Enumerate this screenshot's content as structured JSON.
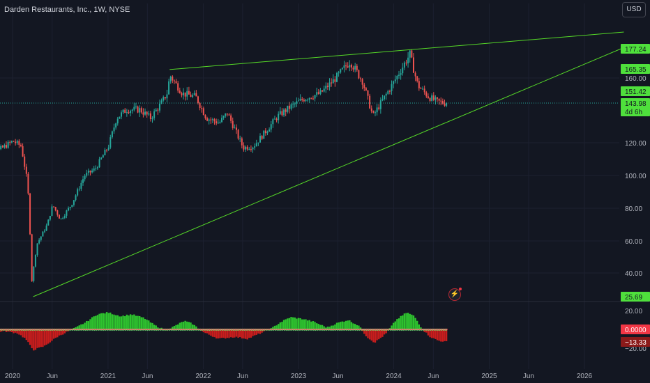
{
  "header": {
    "title": "Darden Restaurants, Inc., 1W, NYSE",
    "currency_button": "USD"
  },
  "colors": {
    "background": "#131722",
    "up": "#26a69a",
    "down": "#ef5350",
    "trendline": "#55d927",
    "osc_pos": "#2ec42e",
    "osc_neg": "#c81d1d"
  },
  "chart_data": {
    "type": "candlestick",
    "x_tick_labels": [
      "2020",
      "Jun",
      "2021",
      "Jun",
      "2022",
      "Jun",
      "2023",
      "Jun",
      "2024",
      "Jun",
      "2025",
      "Jun",
      "2026"
    ],
    "y_tick_labels": [
      "40.00",
      "60.00",
      "80.00",
      "100.00",
      "120.00",
      "160.00"
    ],
    "price_labels": [
      {
        "text": "177.24",
        "value": 177.24,
        "kind": "line"
      },
      {
        "text": "165.35",
        "value": 165.35,
        "kind": "line"
      },
      {
        "text": "151.42",
        "value": 151.42,
        "kind": "line"
      },
      {
        "text": "143.98",
        "value": 143.98,
        "kind": "last"
      },
      {
        "text": "25.69",
        "value": 25.69,
        "kind": "line"
      }
    ],
    "last_price_countdown": "4d 6h",
    "price_path": [
      [
        "2019-09-01",
        118
      ],
      [
        "2019-10-15",
        112
      ],
      [
        "2019-12-01",
        117
      ],
      [
        "2020-01-10",
        121
      ],
      [
        "2020-02-10",
        118
      ],
      [
        "2020-03-06",
        95
      ],
      [
        "2020-03-15",
        65
      ],
      [
        "2020-03-20",
        33
      ],
      [
        "2020-04-10",
        58
      ],
      [
        "2020-05-20",
        70
      ],
      [
        "2020-06-10",
        82
      ],
      [
        "2020-07-10",
        73
      ],
      [
        "2020-08-20",
        82
      ],
      [
        "2020-10-10",
        100
      ],
      [
        "2020-11-20",
        104
      ],
      [
        "2021-01-10",
        118
      ],
      [
        "2021-02-10",
        135
      ],
      [
        "2021-03-20",
        140
      ],
      [
        "2021-05-10",
        140
      ],
      [
        "2021-06-20",
        135
      ],
      [
        "2021-08-01",
        144
      ],
      [
        "2021-08-25",
        151
      ],
      [
        "2021-09-01",
        162
      ],
      [
        "2021-10-20",
        150
      ],
      [
        "2021-12-10",
        148
      ],
      [
        "2022-01-20",
        135
      ],
      [
        "2022-03-10",
        132
      ],
      [
        "2022-04-10",
        138
      ],
      [
        "2022-06-10",
        117
      ],
      [
        "2022-07-20",
        118
      ],
      [
        "2022-09-10",
        128
      ],
      [
        "2022-10-20",
        136
      ],
      [
        "2022-12-10",
        142
      ],
      [
        "2023-02-01",
        147
      ],
      [
        "2023-04-01",
        150
      ],
      [
        "2023-06-01",
        160
      ],
      [
        "2023-07-25",
        170
      ],
      [
        "2023-09-10",
        158
      ],
      [
        "2023-10-20",
        136
      ],
      [
        "2023-12-20",
        152
      ],
      [
        "2024-02-01",
        164
      ],
      [
        "2024-03-10",
        174
      ],
      [
        "2024-04-10",
        155
      ],
      [
        "2024-05-20",
        148
      ],
      [
        "2024-06-20",
        145
      ],
      [
        "2024-07-25",
        144
      ]
    ],
    "lines": [
      {
        "name": "",
        "from": [
          "2021-08-25",
          165
        ],
        "to": [
          "2026-06-01",
          188
        ]
      },
      {
        "name": "",
        "from": [
          "2020-03-20",
          25.69
        ],
        "to": [
          "2026-06-01",
          178
        ]
      }
    ],
    "last_price": 143.98,
    "oscillator": {
      "y_tick_labels": [
        "20.00",
        "-20.00"
      ],
      "labels": [
        {
          "text": "0.0000",
          "kind": "zero"
        },
        {
          "text": "−13.33",
          "kind": "last"
        }
      ],
      "path": [
        [
          "2019-09-01",
          -3
        ],
        [
          "2019-12-01",
          -2
        ],
        [
          "2020-01-20",
          -4
        ],
        [
          "2020-02-20",
          -10
        ],
        [
          "2020-03-20",
          -22
        ],
        [
          "2020-05-01",
          -18
        ],
        [
          "2020-06-20",
          -8
        ],
        [
          "2020-08-01",
          -2
        ],
        [
          "2020-09-01",
          2
        ],
        [
          "2020-10-10",
          8
        ],
        [
          "2020-11-20",
          16
        ],
        [
          "2021-01-01",
          18
        ],
        [
          "2021-02-20",
          14
        ],
        [
          "2021-04-01",
          16
        ],
        [
          "2021-05-20",
          12
        ],
        [
          "2021-07-01",
          4
        ],
        [
          "2021-08-10",
          -1
        ],
        [
          "2021-09-10",
          3
        ],
        [
          "2021-10-20",
          9
        ],
        [
          "2021-11-20",
          6
        ],
        [
          "2022-01-01",
          -3
        ],
        [
          "2022-03-01",
          -10
        ],
        [
          "2022-05-01",
          -8
        ],
        [
          "2022-06-20",
          -10
        ],
        [
          "2022-08-01",
          -5
        ],
        [
          "2022-09-20",
          1
        ],
        [
          "2022-10-20",
          7
        ],
        [
          "2022-12-01",
          13
        ],
        [
          "2023-01-20",
          11
        ],
        [
          "2023-03-01",
          8
        ],
        [
          "2023-04-20",
          2
        ],
        [
          "2023-06-01",
          7
        ],
        [
          "2023-07-10",
          10
        ],
        [
          "2023-08-20",
          4
        ],
        [
          "2023-09-20",
          -8
        ],
        [
          "2023-10-20",
          -14
        ],
        [
          "2023-12-01",
          -5
        ],
        [
          "2024-01-10",
          10
        ],
        [
          "2024-02-20",
          18
        ],
        [
          "2024-03-20",
          14
        ],
        [
          "2024-04-20",
          0
        ],
        [
          "2024-05-20",
          -8
        ],
        [
          "2024-06-20",
          -12
        ],
        [
          "2024-07-25",
          -13.33
        ]
      ]
    }
  }
}
